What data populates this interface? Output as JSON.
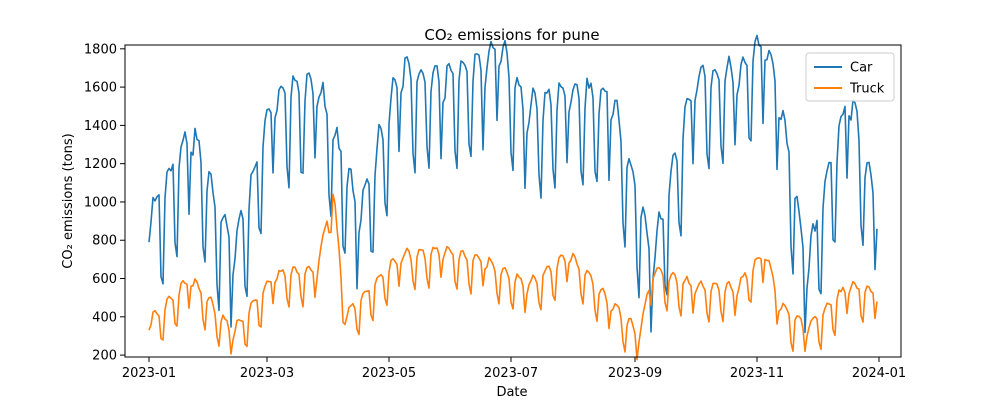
{
  "chart_data": {
    "type": "line",
    "title": "CO₂ emissions for pune",
    "xlabel": "Date",
    "ylabel": "CO₂ emissions (tons)",
    "x_start": "2023-01-01",
    "x_end": "2023-12-31",
    "xlim": [
      "2022-12-20",
      "2024-01-12"
    ],
    "ylim": [
      190,
      1820
    ],
    "x_ticks": [
      "2023-01",
      "2023-03",
      "2023-05",
      "2023-07",
      "2023-09",
      "2023-11",
      "2024-01"
    ],
    "y_ticks": [
      200,
      400,
      600,
      800,
      1000,
      1200,
      1400,
      1600,
      1800
    ],
    "grid": false,
    "legend": "top-right",
    "series": [
      {
        "name": "Car",
        "color": "#1f77b4",
        "x": [
          "2023-01-01",
          "2023-01-22",
          "2023-02-12",
          "2023-03-05",
          "2023-03-26",
          "2023-04-16",
          "2023-05-07",
          "2023-05-28",
          "2023-06-18",
          "2023-06-25",
          "2023-07-09",
          "2023-07-30",
          "2023-08-20",
          "2023-09-10",
          "2023-10-01",
          "2023-10-22",
          "2023-11-05",
          "2023-11-12",
          "2023-11-26",
          "2023-12-17",
          "2023-12-31"
        ],
        "values": [
          790,
          1260,
          620,
          1440,
          1500,
          840,
          1570,
          1520,
          1600,
          1710,
          1360,
          1470,
          1430,
          600,
          1530,
          1560,
          1740,
          1440,
          550,
          1450,
          860
        ]
      },
      {
        "name": "Truck",
        "color": "#ff7f0e",
        "x": [
          "2023-01-01",
          "2023-01-22",
          "2023-02-12",
          "2023-03-05",
          "2023-03-26",
          "2023-04-03",
          "2023-04-09",
          "2023-05-07",
          "2023-05-28",
          "2023-06-18",
          "2023-07-09",
          "2023-07-30",
          "2023-08-20",
          "2023-09-03",
          "2023-09-10",
          "2023-10-01",
          "2023-10-22",
          "2023-11-05",
          "2023-11-12",
          "2023-11-26",
          "2023-12-17",
          "2023-12-31"
        ],
        "values": [
          330,
          560,
          280,
          580,
          600,
          1040,
          360,
          680,
          700,
          650,
          520,
          680,
          430,
          270,
          600,
          520,
          510,
          700,
          430,
          300,
          520,
          480
        ]
      }
    ]
  }
}
